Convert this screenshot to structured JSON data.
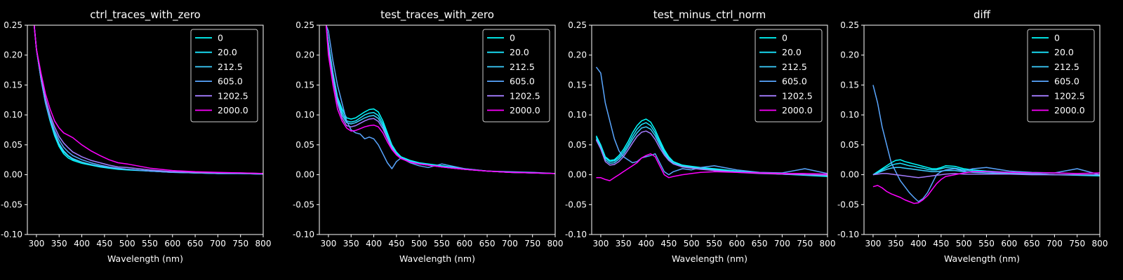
{
  "colors": {
    "background": "#000000",
    "axes": "#ffffff",
    "text": "#ffffff",
    "series": [
      "#00ffff",
      "#1ae5ff",
      "#3dcfff",
      "#59a6ff",
      "#a47cff",
      "#ff00ff"
    ]
  },
  "chart_data": [
    {
      "type": "line",
      "title": "ctrl_traces_with_zero",
      "xlabel": "Wavelength (nm)",
      "ylabel": "",
      "xlim": [
        280,
        800
      ],
      "ylim": [
        -0.1,
        0.25
      ],
      "xticks": [
        300,
        350,
        400,
        450,
        500,
        550,
        600,
        650,
        700,
        750,
        800
      ],
      "yticks": [
        -0.1,
        -0.05,
        0.0,
        0.05,
        0.1,
        0.15,
        0.2,
        0.25
      ],
      "legend_position": "top-right",
      "x": [
        295,
        300,
        310,
        320,
        330,
        340,
        350,
        360,
        370,
        380,
        400,
        420,
        440,
        460,
        480,
        500,
        550,
        600,
        650,
        700,
        750,
        800
      ],
      "series": [
        {
          "name": "0",
          "values": [
            0.25,
            0.21,
            0.16,
            0.12,
            0.09,
            0.065,
            0.047,
            0.035,
            0.028,
            0.024,
            0.019,
            0.016,
            0.013,
            0.011,
            0.009,
            0.008,
            0.006,
            0.004,
            0.003,
            0.002,
            0.002,
            0.001
          ]
        },
        {
          "name": "20.0",
          "values": [
            0.25,
            0.21,
            0.16,
            0.12,
            0.092,
            0.068,
            0.05,
            0.038,
            0.031,
            0.026,
            0.021,
            0.017,
            0.014,
            0.012,
            0.01,
            0.009,
            0.006,
            0.004,
            0.003,
            0.002,
            0.002,
            0.001
          ]
        },
        {
          "name": "212.5",
          "values": [
            0.25,
            0.21,
            0.16,
            0.12,
            0.092,
            0.07,
            0.052,
            0.04,
            0.032,
            0.027,
            0.021,
            0.017,
            0.014,
            0.012,
            0.01,
            0.009,
            0.006,
            0.005,
            0.003,
            0.003,
            0.002,
            0.002
          ]
        },
        {
          "name": "605.0",
          "values": [
            0.25,
            0.21,
            0.16,
            0.122,
            0.095,
            0.074,
            0.058,
            0.046,
            0.038,
            0.032,
            0.025,
            0.02,
            0.016,
            0.013,
            0.011,
            0.009,
            0.006,
            0.004,
            0.003,
            0.002,
            0.002,
            0.001
          ]
        },
        {
          "name": "1202.5",
          "values": [
            0.25,
            0.21,
            0.165,
            0.128,
            0.1,
            0.08,
            0.064,
            0.053,
            0.045,
            0.038,
            0.03,
            0.024,
            0.02,
            0.016,
            0.013,
            0.012,
            0.008,
            0.005,
            0.004,
            0.003,
            0.003,
            0.002
          ]
        },
        {
          "name": "2000.0",
          "values": [
            0.25,
            0.21,
            0.17,
            0.135,
            0.11,
            0.09,
            0.078,
            0.07,
            0.066,
            0.062,
            0.05,
            0.04,
            0.032,
            0.025,
            0.02,
            0.018,
            0.011,
            0.007,
            0.005,
            0.004,
            0.003,
            0.002
          ]
        }
      ]
    },
    {
      "type": "line",
      "title": "test_traces_with_zero",
      "xlabel": "Wavelength (nm)",
      "ylabel": "",
      "xlim": [
        280,
        800
      ],
      "ylim": [
        -0.1,
        0.25
      ],
      "xticks": [
        300,
        350,
        400,
        450,
        500,
        550,
        600,
        650,
        700,
        750,
        800
      ],
      "yticks": [
        -0.1,
        -0.05,
        0.0,
        0.05,
        0.1,
        0.15,
        0.2,
        0.25
      ],
      "legend_position": "top-right",
      "x": [
        295,
        300,
        310,
        320,
        330,
        340,
        350,
        360,
        370,
        380,
        390,
        400,
        410,
        420,
        430,
        440,
        450,
        460,
        480,
        500,
        520,
        550,
        600,
        650,
        700,
        750,
        800
      ],
      "series": [
        {
          "name": "0",
          "values": [
            0.25,
            0.22,
            0.17,
            0.13,
            0.11,
            0.095,
            0.093,
            0.095,
            0.1,
            0.105,
            0.109,
            0.11,
            0.105,
            0.09,
            0.07,
            0.05,
            0.038,
            0.03,
            0.024,
            0.02,
            0.018,
            0.015,
            0.01,
            0.006,
            0.004,
            0.003,
            0.002
          ]
        },
        {
          "name": "20.0",
          "values": [
            0.25,
            0.22,
            0.17,
            0.13,
            0.105,
            0.09,
            0.088,
            0.09,
            0.095,
            0.1,
            0.103,
            0.104,
            0.099,
            0.085,
            0.066,
            0.048,
            0.036,
            0.029,
            0.023,
            0.019,
            0.017,
            0.014,
            0.009,
            0.006,
            0.004,
            0.003,
            0.002
          ]
        },
        {
          "name": "212.5",
          "values": [
            0.25,
            0.22,
            0.165,
            0.125,
            0.1,
            0.087,
            0.085,
            0.087,
            0.091,
            0.095,
            0.098,
            0.099,
            0.094,
            0.081,
            0.063,
            0.046,
            0.035,
            0.028,
            0.022,
            0.018,
            0.016,
            0.013,
            0.009,
            0.006,
            0.004,
            0.003,
            0.002
          ]
        },
        {
          "name": "605.0",
          "values": [
            0.25,
            0.24,
            0.19,
            0.15,
            0.12,
            0.09,
            0.075,
            0.07,
            0.068,
            0.06,
            0.063,
            0.06,
            0.05,
            0.035,
            0.02,
            0.01,
            0.022,
            0.028,
            0.02,
            0.015,
            0.012,
            0.018,
            0.01,
            0.006,
            0.005,
            0.004,
            0.002
          ]
        },
        {
          "name": "1202.5",
          "values": [
            0.25,
            0.21,
            0.16,
            0.12,
            0.095,
            0.082,
            0.08,
            0.082,
            0.086,
            0.09,
            0.093,
            0.094,
            0.089,
            0.077,
            0.06,
            0.044,
            0.034,
            0.027,
            0.021,
            0.018,
            0.016,
            0.013,
            0.009,
            0.006,
            0.004,
            0.003,
            0.002
          ]
        },
        {
          "name": "2000.0",
          "values": [
            0.25,
            0.2,
            0.15,
            0.11,
            0.09,
            0.078,
            0.073,
            0.074,
            0.077,
            0.08,
            0.082,
            0.083,
            0.08,
            0.07,
            0.055,
            0.042,
            0.033,
            0.027,
            0.021,
            0.018,
            0.016,
            0.013,
            0.009,
            0.006,
            0.004,
            0.003,
            0.002
          ]
        }
      ]
    },
    {
      "type": "line",
      "title": "test_minus_ctrl_norm",
      "xlabel": "Wavelength (nm)",
      "ylabel": "",
      "xlim": [
        280,
        800
      ],
      "ylim": [
        -0.1,
        0.25
      ],
      "xticks": [
        300,
        350,
        400,
        450,
        500,
        550,
        600,
        650,
        700,
        750,
        800
      ],
      "yticks": [
        -0.1,
        -0.05,
        0.0,
        0.05,
        0.1,
        0.15,
        0.2,
        0.25
      ],
      "legend_position": "top-right",
      "x": [
        290,
        300,
        310,
        320,
        330,
        340,
        350,
        360,
        370,
        380,
        390,
        400,
        410,
        420,
        430,
        440,
        450,
        460,
        480,
        500,
        520,
        550,
        600,
        650,
        700,
        750,
        800
      ],
      "series": [
        {
          "name": "0",
          "values": [
            0.065,
            0.05,
            0.03,
            0.024,
            0.025,
            0.032,
            0.042,
            0.055,
            0.07,
            0.082,
            0.09,
            0.093,
            0.088,
            0.075,
            0.058,
            0.042,
            0.03,
            0.022,
            0.016,
            0.014,
            0.012,
            0.01,
            0.006,
            0.003,
            0.001,
            -0.001,
            -0.003
          ]
        },
        {
          "name": "20.0",
          "values": [
            0.063,
            0.048,
            0.028,
            0.022,
            0.023,
            0.029,
            0.038,
            0.05,
            0.064,
            0.076,
            0.084,
            0.087,
            0.082,
            0.07,
            0.054,
            0.039,
            0.028,
            0.021,
            0.015,
            0.013,
            0.011,
            0.009,
            0.005,
            0.003,
            0.001,
            0.0,
            -0.002
          ]
        },
        {
          "name": "212.5",
          "values": [
            0.06,
            0.045,
            0.025,
            0.019,
            0.02,
            0.026,
            0.034,
            0.046,
            0.059,
            0.07,
            0.078,
            0.08,
            0.076,
            0.065,
            0.05,
            0.036,
            0.026,
            0.019,
            0.014,
            0.012,
            0.01,
            0.008,
            0.005,
            0.003,
            0.001,
            0.0,
            -0.001
          ]
        },
        {
          "name": "605.0",
          "values": [
            0.18,
            0.17,
            0.12,
            0.09,
            0.06,
            0.04,
            0.03,
            0.025,
            0.02,
            0.022,
            0.028,
            0.03,
            0.032,
            0.035,
            0.02,
            0.005,
            0.0,
            0.005,
            0.01,
            0.008,
            0.012,
            0.015,
            0.008,
            0.004,
            0.003,
            0.01,
            0.002
          ]
        },
        {
          "name": "1202.5",
          "values": [
            0.058,
            0.043,
            0.022,
            0.016,
            0.017,
            0.022,
            0.03,
            0.041,
            0.053,
            0.064,
            0.071,
            0.073,
            0.069,
            0.059,
            0.045,
            0.033,
            0.024,
            0.018,
            0.013,
            0.011,
            0.009,
            0.007,
            0.004,
            0.002,
            0.001,
            0.0,
            -0.001
          ]
        },
        {
          "name": "2000.0",
          "values": [
            -0.005,
            -0.005,
            -0.008,
            -0.01,
            -0.005,
            0.0,
            0.005,
            0.01,
            0.015,
            0.02,
            0.028,
            0.032,
            0.035,
            0.03,
            0.015,
            0.0,
            -0.005,
            -0.003,
            0.0,
            0.002,
            0.004,
            0.005,
            0.004,
            0.003,
            0.002,
            0.002,
            0.001
          ]
        }
      ]
    },
    {
      "type": "line",
      "title": "diff",
      "xlabel": "Wavelength (nm)",
      "ylabel": "",
      "xlim": [
        280,
        800
      ],
      "ylim": [
        -0.1,
        0.25
      ],
      "xticks": [
        300,
        350,
        400,
        450,
        500,
        550,
        600,
        650,
        700,
        750,
        800
      ],
      "yticks": [
        -0.1,
        -0.05,
        0.0,
        0.05,
        0.1,
        0.15,
        0.2,
        0.25
      ],
      "legend_position": "top-right",
      "x": [
        300,
        310,
        320,
        330,
        340,
        350,
        360,
        370,
        380,
        390,
        400,
        410,
        420,
        430,
        440,
        450,
        460,
        480,
        500,
        520,
        550,
        600,
        650,
        700,
        750,
        800
      ],
      "series": [
        {
          "name": "0",
          "values": [
            0.0,
            0.005,
            0.01,
            0.015,
            0.02,
            0.024,
            0.025,
            0.022,
            0.02,
            0.018,
            0.016,
            0.014,
            0.012,
            0.01,
            0.01,
            0.012,
            0.015,
            0.014,
            0.01,
            0.008,
            0.006,
            0.004,
            0.002,
            0.0,
            -0.001,
            -0.002
          ]
        },
        {
          "name": "20.0",
          "values": [
            0.0,
            0.004,
            0.008,
            0.012,
            0.016,
            0.018,
            0.019,
            0.017,
            0.015,
            0.014,
            0.012,
            0.011,
            0.009,
            0.008,
            0.008,
            0.01,
            0.012,
            0.011,
            0.008,
            0.006,
            0.005,
            0.003,
            0.002,
            0.0,
            0.0,
            -0.001
          ]
        },
        {
          "name": "212.5",
          "values": [
            0.0,
            0.003,
            0.006,
            0.009,
            0.011,
            0.012,
            0.012,
            0.011,
            0.01,
            0.009,
            0.008,
            0.007,
            0.006,
            0.005,
            0.005,
            0.006,
            0.007,
            0.007,
            0.005,
            0.004,
            0.003,
            0.002,
            0.001,
            0.0,
            0.0,
            0.0
          ]
        },
        {
          "name": "605.0",
          "values": [
            0.15,
            0.12,
            0.08,
            0.05,
            0.02,
            0.005,
            -0.01,
            -0.02,
            -0.03,
            -0.038,
            -0.045,
            -0.04,
            -0.03,
            -0.015,
            0.0,
            0.005,
            0.008,
            0.01,
            0.006,
            0.01,
            0.012,
            0.006,
            0.004,
            0.003,
            0.01,
            0.0
          ]
        },
        {
          "name": "1202.5",
          "values": [
            0.0,
            0.001,
            0.002,
            0.002,
            0.001,
            0.0,
            -0.001,
            -0.002,
            -0.003,
            -0.004,
            -0.005,
            -0.004,
            -0.003,
            -0.002,
            -0.001,
            0.0,
            0.001,
            0.002,
            0.001,
            0.001,
            0.001,
            0.001,
            0.0,
            0.0,
            0.0,
            0.0
          ]
        },
        {
          "name": "2000.0",
          "values": [
            -0.02,
            -0.018,
            -0.022,
            -0.028,
            -0.032,
            -0.035,
            -0.038,
            -0.042,
            -0.045,
            -0.048,
            -0.047,
            -0.042,
            -0.035,
            -0.025,
            -0.015,
            -0.008,
            -0.003,
            0.0,
            0.003,
            0.005,
            0.005,
            0.004,
            0.003,
            0.003,
            0.002,
            0.003
          ]
        }
      ]
    }
  ]
}
